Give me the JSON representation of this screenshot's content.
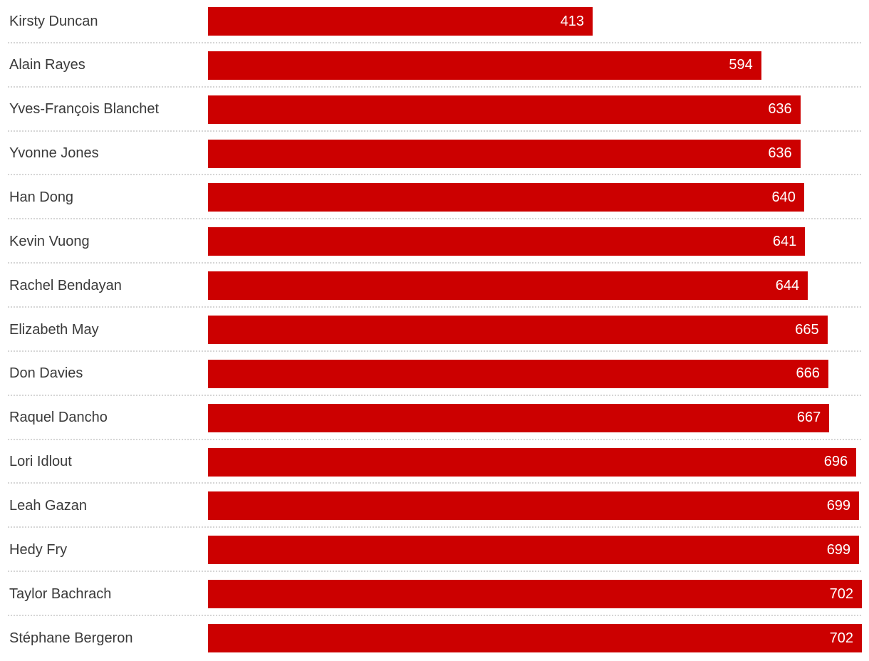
{
  "chart_data": {
    "type": "bar",
    "orientation": "horizontal",
    "title": "",
    "xlabel": "",
    "ylabel": "",
    "grid": false,
    "legend": false,
    "xlim": [
      0,
      702
    ],
    "value_labels": "inside-bar-right",
    "categories": [
      "Kirsty Duncan",
      "Alain Rayes",
      "Yves-François Blanchet",
      "Yvonne Jones",
      "Han Dong",
      "Kevin Vuong",
      "Rachel Bendayan",
      "Elizabeth May",
      "Don Davies",
      "Raquel Dancho",
      "Lori Idlout",
      "Leah Gazan",
      "Hedy Fry",
      "Taylor Bachrach",
      "Stéphane Bergeron"
    ],
    "values": [
      413,
      594,
      636,
      636,
      640,
      641,
      644,
      665,
      666,
      667,
      696,
      699,
      699,
      702,
      702
    ]
  },
  "colors": {
    "bar": "#cc0000",
    "category_label": "#3a3a3a",
    "value_label": "#ffffff",
    "separator": "#d6d6d6",
    "background": "#ffffff"
  }
}
